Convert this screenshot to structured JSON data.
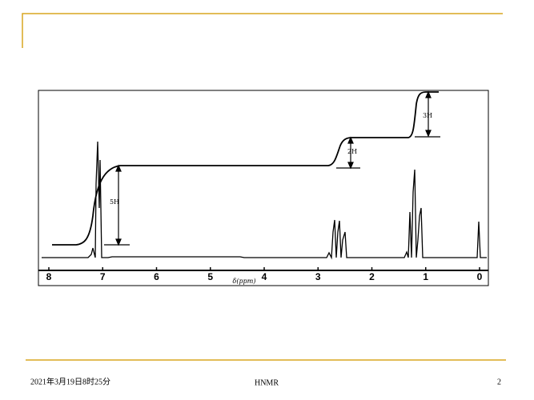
{
  "figure": {
    "xticks": [
      8,
      7,
      6,
      5,
      4,
      3,
      2,
      1,
      0
    ],
    "xlabel": "δ(ppm)",
    "integrals": [
      "5H",
      "2H",
      "3H"
    ]
  },
  "footer": {
    "date": "2021年3月19日8时25分",
    "title": "HNMR",
    "page": "2"
  }
}
